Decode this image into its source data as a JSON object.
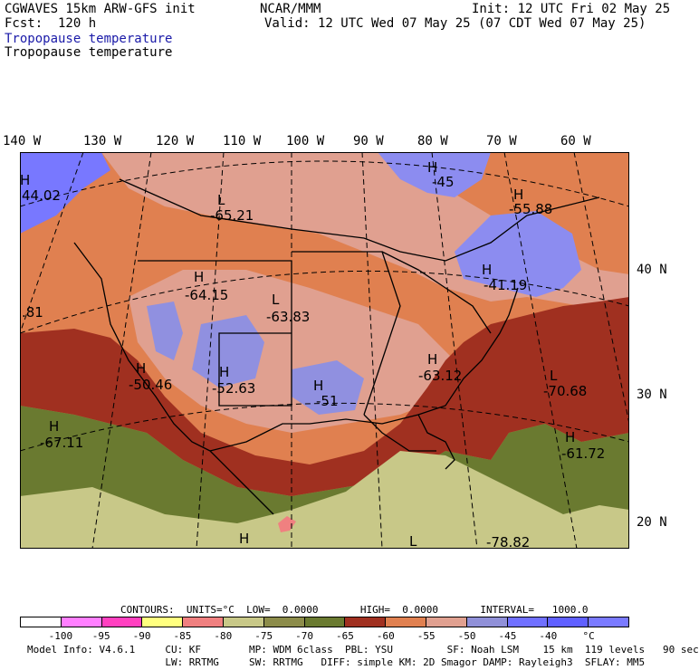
{
  "header": {
    "model": "CGWAVES 15km ARW-GFS init",
    "org": "NCAR/MMM",
    "init": "Init: 12 UTC Fri 02 May 25",
    "fcst": "Fcst:  120 h",
    "valid": "Valid: 12 UTC Wed 07 May 25 (07 CDT Wed 07 May 25)",
    "field_blue": "Tropopause temperature",
    "field_black": "Tropopause temperature"
  },
  "lon_labels": [
    "140 W",
    "130 W",
    "120 W",
    "110 W",
    "100 W",
    "90 W",
    "80 W",
    "70 W",
    "60 W"
  ],
  "lat_labels": [
    "40 N",
    "30 N",
    "20 N"
  ],
  "pressure_centers": [
    {
      "letter": "L",
      "value": "-65.21"
    },
    {
      "letter": "H",
      "value": "-45"
    },
    {
      "letter": "H",
      "value": "-55.88"
    },
    {
      "letter": "H",
      "value": "44.02"
    },
    {
      "letter": "H",
      "value": "-64.15"
    },
    {
      "letter": "L",
      "value": "-63.83"
    },
    {
      "letter": "H",
      "value": "-41.19"
    },
    {
      "letter": "",
      "value": ".81"
    },
    {
      "letter": "H",
      "value": "-50.46"
    },
    {
      "letter": "H",
      "value": "-52.63"
    },
    {
      "letter": "H",
      "value": "-51"
    },
    {
      "letter": "H",
      "value": "-63.12"
    },
    {
      "letter": "L",
      "value": "-70.68"
    },
    {
      "letter": "H",
      "value": "-67.11"
    },
    {
      "letter": "H",
      "value": "-61.72"
    },
    {
      "letter": "H",
      "value": ""
    },
    {
      "letter": "L",
      "value": ""
    },
    {
      "letter": "",
      "value": "-78.82"
    }
  ],
  "contours_line": "CONTOURS:  UNITS=°C  LOW=  0.0000       HIGH=  0.0000       INTERVAL=   1000.0",
  "colorbar": {
    "colors": [
      "#ffffff",
      "#ff7fff",
      "#ff40c0",
      "#ffff7f",
      "#f08080",
      "#c8c888",
      "#8c8c4a",
      "#6a7a30",
      "#a03020",
      "#e08050",
      "#e0a090",
      "#9090d8",
      "#7070ff",
      "#6060ff",
      "#7a7aff"
    ],
    "ticks": [
      "-100",
      "-95",
      "-90",
      "-85",
      "-80",
      "-75",
      "-70",
      "-65",
      "-60",
      "-55",
      "-50",
      "-45",
      "-40",
      "°C"
    ]
  },
  "model_info": {
    "line1": "Model Info: V4.6.1     CU: KF        MP: WDM 6class  PBL: YSU         SF: Noah LSM    15 km  119 levels   90 sec",
    "line2": "                       LW: RRTMG     SW: RRTMG   DIFF: simple KM: 2D Smagor DAMP: Rayleigh3  SFLAY: MM5"
  }
}
